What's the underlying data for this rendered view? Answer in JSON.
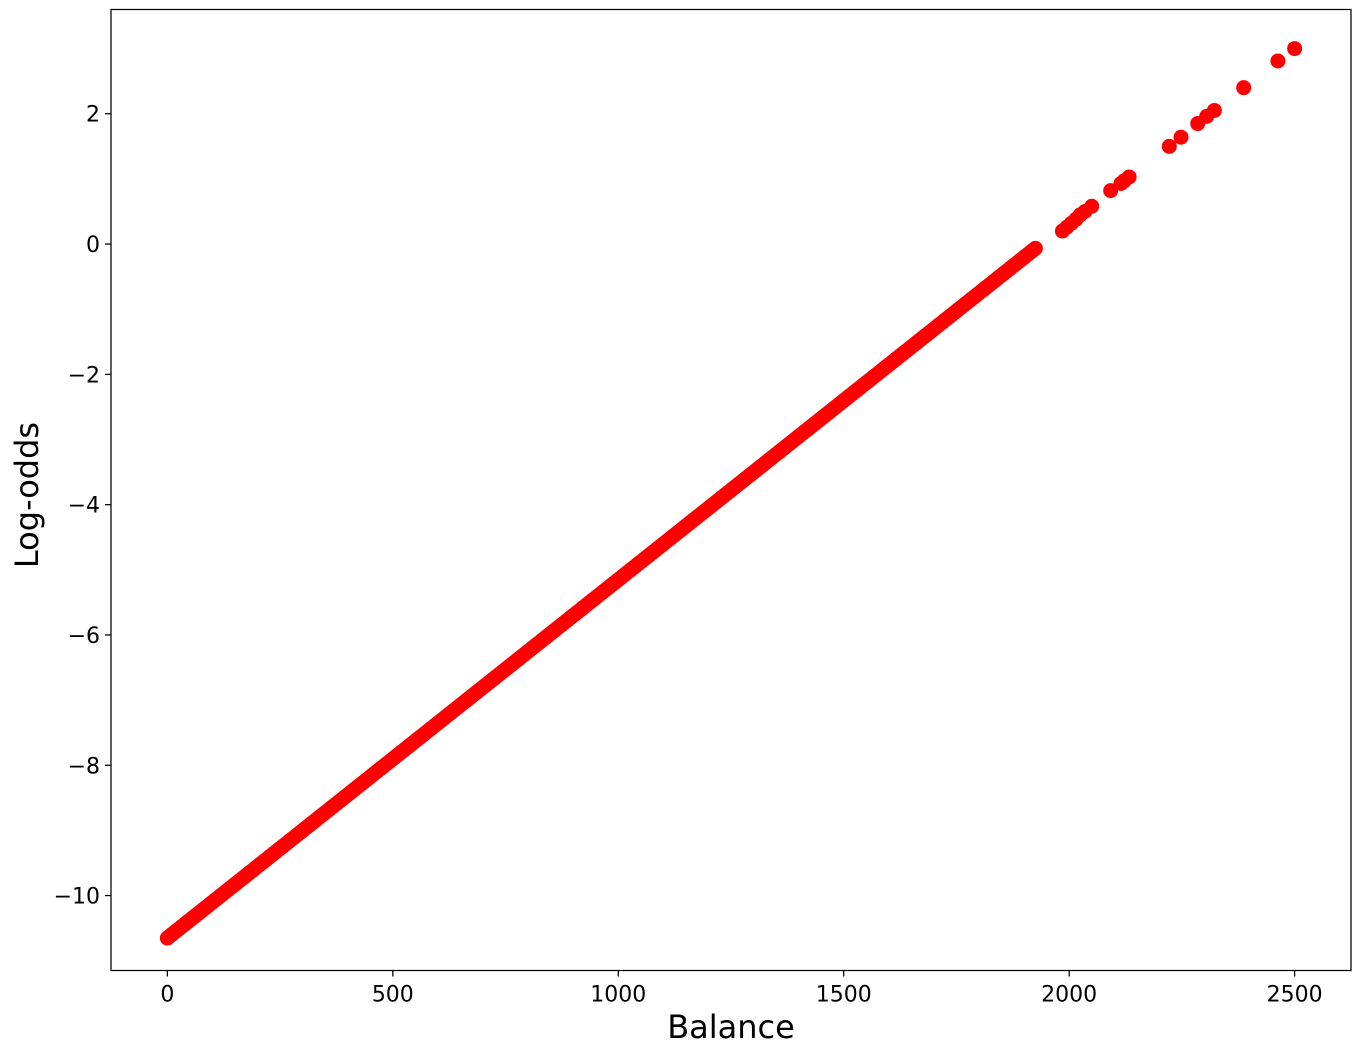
{
  "chart_data": {
    "type": "scatter",
    "title": "",
    "xlabel": "Balance",
    "ylabel": "Log-odds",
    "xlim": [
      -125,
      2625
    ],
    "ylim": [
      -11.15,
      3.6
    ],
    "xticks": [
      0,
      500,
      1000,
      1500,
      2000,
      2500
    ],
    "yticks": [
      -10,
      -8,
      -6,
      -4,
      -2,
      0,
      2
    ],
    "xtick_labels": [
      "0",
      "500",
      "1000",
      "1500",
      "2000",
      "2500"
    ],
    "ytick_labels": [
      "−10",
      "−8",
      "−6",
      "−4",
      "−2",
      "0",
      "2"
    ],
    "grid": false,
    "legend": null,
    "marker_color": "#ff0000",
    "model": {
      "relation": "log-odds = -10.6513 + 0.005499 × balance",
      "intercept": -10.6513,
      "slope": 0.005499
    },
    "dense_range": {
      "x_start": 0,
      "x_end": 1925,
      "step": 5
    },
    "series": [
      {
        "sparse_points": [
          {
            "x": 1985,
            "y": 0.2
          },
          {
            "x": 1995,
            "y": 0.26
          },
          {
            "x": 2005,
            "y": 0.32
          },
          {
            "x": 2015,
            "y": 0.38
          },
          {
            "x": 2025,
            "y": 0.45
          },
          {
            "x": 2035,
            "y": 0.5
          },
          {
            "x": 2050,
            "y": 0.58
          },
          {
            "x": 2092,
            "y": 0.82
          },
          {
            "x": 2115,
            "y": 0.93
          },
          {
            "x": 2122,
            "y": 0.97
          },
          {
            "x": 2133,
            "y": 1.03
          },
          {
            "x": 2222,
            "y": 1.5
          },
          {
            "x": 2248,
            "y": 1.64
          },
          {
            "x": 2285,
            "y": 1.85
          },
          {
            "x": 2305,
            "y": 1.96
          },
          {
            "x": 2322,
            "y": 2.05
          },
          {
            "x": 2387,
            "y": 2.4
          },
          {
            "x": 2463,
            "y": 2.81
          },
          {
            "x": 2500,
            "y": 3.0
          }
        ]
      }
    ]
  }
}
